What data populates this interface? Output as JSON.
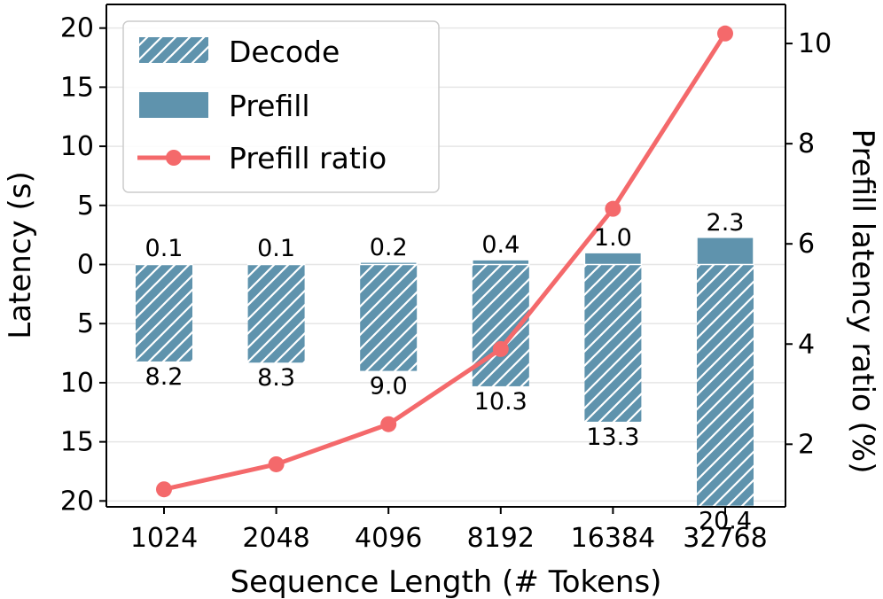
{
  "chart_data": {
    "type": "bar",
    "categories": [
      "1024",
      "2048",
      "4096",
      "8192",
      "16384",
      "32768"
    ],
    "series": [
      {
        "name": "Decode",
        "values": [
          8.2,
          8.3,
          9.0,
          10.3,
          13.3,
          20.4
        ],
        "labels": [
          "8.2",
          "8.3",
          "9.0",
          "10.3",
          "13.3",
          "20.4"
        ],
        "direction": "down",
        "pattern": "hatched",
        "color": "#5f93ad"
      },
      {
        "name": "Prefill",
        "values": [
          0.1,
          0.1,
          0.2,
          0.4,
          1.0,
          2.3
        ],
        "labels": [
          "0.1",
          "0.1",
          "0.2",
          "0.4",
          "1.0",
          "2.3"
        ],
        "direction": "up",
        "pattern": "solid",
        "color": "#5f93ad"
      },
      {
        "name": "Prefill ratio",
        "type": "line",
        "axis": "right",
        "values": [
          1.1,
          1.6,
          2.4,
          3.9,
          6.7,
          10.2
        ],
        "color": "#f4696b",
        "marker": "circle"
      }
    ],
    "xlabel": "Sequence Length (# Tokens)",
    "ylabel": "Latency (s)",
    "y2label": "Prefill latency ratio (%)",
    "ylim": [
      -20.5,
      22
    ],
    "y_ticks": [
      20,
      15,
      10,
      5,
      0,
      -5,
      -10,
      -15,
      -20
    ],
    "y_tick_labels": [
      "20",
      "15",
      "10",
      "5",
      "0",
      "5",
      "10",
      "15",
      "20"
    ],
    "y2lim": [
      0.75,
      10.78
    ],
    "y2_ticks": [
      2,
      4,
      6,
      8,
      10
    ],
    "y2_tick_labels": [
      "2",
      "4",
      "6",
      "8",
      "10"
    ],
    "grid": true,
    "legend": "top-left"
  }
}
